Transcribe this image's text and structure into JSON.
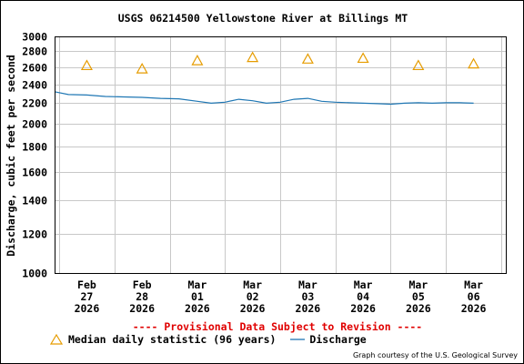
{
  "title": "USGS 06214500 Yellowstone River at Billings MT",
  "disclaimer": "---- Provisional Data Subject to Revision ----",
  "legend": {
    "median_label": "Median daily statistic (96 years)",
    "discharge_label": "Discharge"
  },
  "credit": "Graph courtesy of the U.S. Geological Survey",
  "colors": {
    "discharge": "#1f77b4",
    "median": "#e69c00",
    "disclaimer": "#e00000",
    "grid": "#c8c8c8"
  },
  "chart_data": {
    "type": "line",
    "title": "USGS 06214500 Yellowstone River at Billings MT",
    "ylabel": "Discharge, cubic feet per second",
    "xlabel": "",
    "yscale": "log",
    "ylim": [
      1000,
      3000
    ],
    "yticks": [
      "1000",
      "1200",
      "1400",
      "1600",
      "1800",
      "2000",
      "2200",
      "2400",
      "2600",
      "2800",
      "3000"
    ],
    "xticks": [
      [
        "Feb",
        "27",
        "2026"
      ],
      [
        "Feb",
        "28",
        "2026"
      ],
      [
        "Mar",
        "01",
        "2026"
      ],
      [
        "Mar",
        "02",
        "2026"
      ],
      [
        "Mar",
        "03",
        "2026"
      ],
      [
        "Mar",
        "04",
        "2026"
      ],
      [
        "Mar",
        "05",
        "2026"
      ],
      [
        "Mar",
        "06",
        "2026"
      ]
    ],
    "xlim": [
      "2026-02-26T10:00",
      "2026-03-06T14:00"
    ],
    "grid": true,
    "series": [
      {
        "name": "Discharge",
        "x": [
          "2026-02-26T10:00",
          "2026-02-26T16:00",
          "2026-02-27T00:00",
          "2026-02-27T08:00",
          "2026-02-27T16:00",
          "2026-02-28T00:00",
          "2026-02-28T08:00",
          "2026-02-28T16:00",
          "2026-03-01T00:00",
          "2026-03-01T06:00",
          "2026-03-01T12:00",
          "2026-03-01T18:00",
          "2026-03-02T00:00",
          "2026-03-02T06:00",
          "2026-03-02T12:00",
          "2026-03-02T18:00",
          "2026-03-03T00:00",
          "2026-03-03T06:00",
          "2026-03-03T12:00",
          "2026-03-03T18:00",
          "2026-03-04T00:00",
          "2026-03-04T06:00",
          "2026-03-04T12:00",
          "2026-03-04T18:00",
          "2026-03-05T00:00",
          "2026-03-05T06:00",
          "2026-03-05T12:00",
          "2026-03-05T18:00",
          "2026-03-06T00:00"
        ],
        "y": [
          2320,
          2290,
          2285,
          2270,
          2265,
          2260,
          2250,
          2245,
          2220,
          2200,
          2210,
          2240,
          2225,
          2200,
          2210,
          2240,
          2250,
          2220,
          2210,
          2205,
          2200,
          2195,
          2190,
          2200,
          2205,
          2200,
          2205,
          2205,
          2200
        ]
      },
      {
        "name": "Median daily statistic (96 years)",
        "x": [
          "2026-02-27T00:00",
          "2026-02-28T00:00",
          "2026-03-01T00:00",
          "2026-03-02T00:00",
          "2026-03-03T00:00",
          "2026-03-04T00:00",
          "2026-03-05T00:00",
          "2026-03-06T00:00"
        ],
        "y": [
          2620,
          2580,
          2680,
          2720,
          2700,
          2710,
          2620,
          2640
        ]
      }
    ]
  }
}
